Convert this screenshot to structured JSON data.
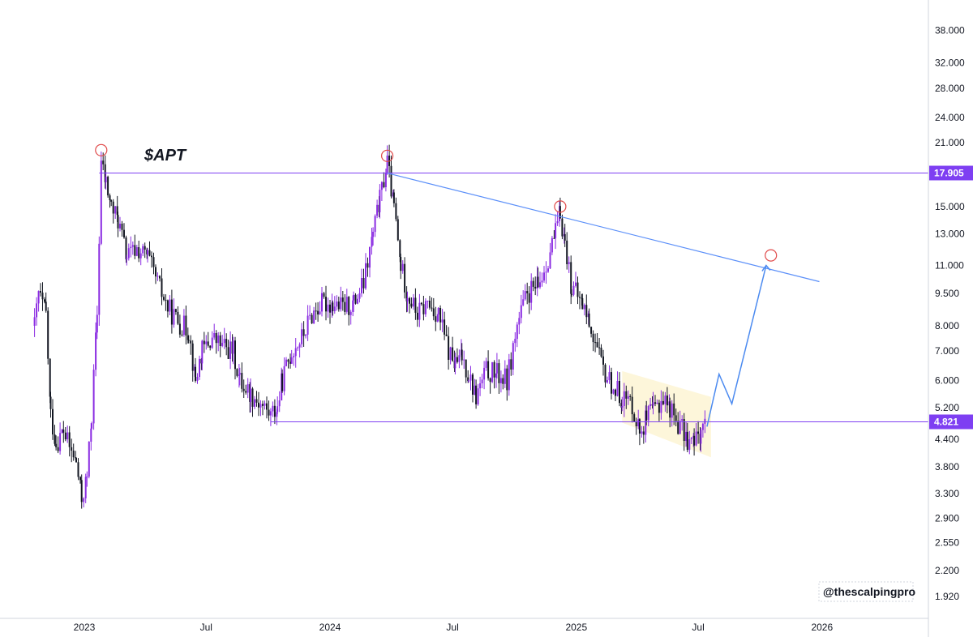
{
  "chart_data": {
    "type": "candlestick",
    "ticker": "$APT",
    "y_scale": "log",
    "y_ticks": [
      "1.920",
      "2.200",
      "2.550",
      "2.900",
      "3.300",
      "3.800",
      "4.400",
      "5.200",
      "6.000",
      "7.000",
      "8.000",
      "9.500",
      "11.000",
      "13.000",
      "15.000",
      "17.905",
      "21.000",
      "24.000",
      "28.000",
      "32.000",
      "38.000"
    ],
    "x_ticks": [
      "2023",
      "Jul",
      "2024",
      "Jul",
      "2025",
      "Jul",
      "2026"
    ],
    "price_labels": [
      {
        "text": "17.905",
        "value": 17.905,
        "color": "#7e3ff2"
      },
      {
        "text": "4.821",
        "value": 4.821,
        "color": "#7e3ff2"
      }
    ],
    "series": [
      {
        "kind": "candles",
        "points": [
          [
            "2022-10-19",
            8.0
          ],
          [
            "2022-10-25",
            9.5
          ],
          [
            "2022-11-05",
            8.5
          ],
          [
            "2022-11-12",
            5.0
          ],
          [
            "2022-11-20",
            4.3
          ],
          [
            "2022-12-01",
            4.6
          ],
          [
            "2022-12-10",
            4.2
          ],
          [
            "2022-12-20",
            3.9
          ],
          [
            "2022-12-28",
            3.2
          ],
          [
            "2023-01-05",
            3.6
          ],
          [
            "2023-01-12",
            5.0
          ],
          [
            "2023-01-20",
            8.5
          ],
          [
            "2023-01-26",
            19.0
          ],
          [
            "2023-02-02",
            17.0
          ],
          [
            "2023-02-10",
            15.0
          ],
          [
            "2023-02-20",
            14.0
          ],
          [
            "2023-03-05",
            11.5
          ],
          [
            "2023-03-20",
            12.0
          ],
          [
            "2023-04-05",
            11.5
          ],
          [
            "2023-04-20",
            10.0
          ],
          [
            "2023-05-05",
            8.8
          ],
          [
            "2023-05-20",
            8.2
          ],
          [
            "2023-06-05",
            7.8
          ],
          [
            "2023-06-15",
            6.0
          ],
          [
            "2023-06-25",
            7.0
          ],
          [
            "2023-07-10",
            7.5
          ],
          [
            "2023-07-25",
            7.2
          ],
          [
            "2023-08-10",
            7.0
          ],
          [
            "2023-08-20",
            6.0
          ],
          [
            "2023-09-05",
            5.6
          ],
          [
            "2023-09-20",
            5.3
          ],
          [
            "2023-10-05",
            5.0
          ],
          [
            "2023-10-15",
            5.2
          ],
          [
            "2023-10-22",
            6.0
          ],
          [
            "2023-11-05",
            7.0
          ],
          [
            "2023-11-20",
            7.5
          ],
          [
            "2023-12-05",
            8.5
          ],
          [
            "2023-12-20",
            9.0
          ],
          [
            "2024-01-05",
            9.0
          ],
          [
            "2024-01-20",
            8.8
          ],
          [
            "2024-02-05",
            9.0
          ],
          [
            "2024-02-20",
            10.0
          ],
          [
            "2024-03-05",
            13.0
          ],
          [
            "2024-03-15",
            15.5
          ],
          [
            "2024-03-26",
            19.0
          ],
          [
            "2024-04-05",
            15.0
          ],
          [
            "2024-04-15",
            11.0
          ],
          [
            "2024-04-25",
            9.5
          ],
          [
            "2024-05-10",
            8.5
          ],
          [
            "2024-05-25",
            9.0
          ],
          [
            "2024-06-10",
            8.5
          ],
          [
            "2024-06-25",
            7.0
          ],
          [
            "2024-07-05",
            6.5
          ],
          [
            "2024-07-15",
            6.8
          ],
          [
            "2024-07-25",
            6.2
          ],
          [
            "2024-08-05",
            5.5
          ],
          [
            "2024-08-20",
            6.3
          ],
          [
            "2024-09-05",
            6.2
          ],
          [
            "2024-09-20",
            6.0
          ],
          [
            "2024-10-05",
            8.0
          ],
          [
            "2024-10-20",
            9.5
          ],
          [
            "2024-11-05",
            9.8
          ],
          [
            "2024-11-20",
            11.5
          ],
          [
            "2024-12-01",
            13.0
          ],
          [
            "2024-12-08",
            14.5
          ],
          [
            "2024-12-15",
            12.5
          ],
          [
            "2024-12-25",
            9.8
          ],
          [
            "2025-01-10",
            9.0
          ],
          [
            "2025-01-20",
            8.2
          ],
          [
            "2025-02-01",
            7.0
          ],
          [
            "2025-02-10",
            6.3
          ],
          [
            "2025-02-25",
            5.8
          ],
          [
            "2025-03-10",
            5.5
          ],
          [
            "2025-03-25",
            5.3
          ],
          [
            "2025-04-05",
            4.6
          ],
          [
            "2025-04-15",
            4.9
          ],
          [
            "2025-04-25",
            5.1
          ],
          [
            "2025-05-10",
            5.5
          ],
          [
            "2025-05-20",
            5.2
          ],
          [
            "2025-06-01",
            4.8
          ],
          [
            "2025-06-15",
            4.4
          ],
          [
            "2025-06-25",
            4.3
          ],
          [
            "2025-07-05",
            4.6
          ],
          [
            "2025-07-12",
            4.9
          ]
        ]
      },
      {
        "kind": "horizontal_line",
        "value": 17.905,
        "from": "2023-01-23",
        "color": "#7e3ff2"
      },
      {
        "kind": "horizontal_line",
        "value": 4.821,
        "from": "2023-10-05",
        "color": "#7e3ff2"
      },
      {
        "kind": "trendline",
        "points": [
          [
            "2024-03-26",
            17.9
          ],
          [
            "2025-12-28",
            10.1
          ]
        ],
        "color": "#5b8ff9"
      },
      {
        "kind": "projection",
        "points": [
          [
            "2025-07-14",
            4.7
          ],
          [
            "2025-08-01",
            6.2
          ],
          [
            "2025-08-20",
            5.3
          ],
          [
            "2025-10-10",
            11.0
          ]
        ],
        "color": "#4b8af0"
      },
      {
        "kind": "highlight_zone",
        "corners": [
          [
            "2025-03-10",
            6.3
          ],
          [
            "2025-07-20",
            5.5
          ],
          [
            "2025-07-20",
            4.0
          ],
          [
            "2025-03-10",
            4.8
          ]
        ],
        "color": "#fdf5d6"
      },
      {
        "kind": "circle_markers",
        "points": [
          [
            "2023-01-26",
            20.2
          ],
          [
            "2024-03-26",
            19.6
          ],
          [
            "2024-12-08",
            15.0
          ],
          [
            "2025-10-17",
            11.6
          ]
        ],
        "color": "#e04a4a"
      }
    ]
  },
  "watermark": "@thescalpingpro",
  "colors": {
    "up_candle": "#8a2be2",
    "down_candle": "#131722",
    "level_line": "#7e3ff2",
    "trend_line": "#5b8ff9",
    "projection": "#4b8af0",
    "marker": "#e04a4a",
    "zone": "#fdf5d6",
    "axis_border": "#d1d4dc"
  }
}
